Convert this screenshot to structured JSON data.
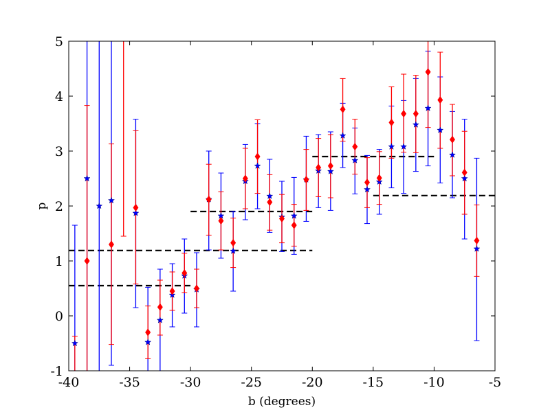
{
  "chart_data": {
    "type": "scatter",
    "title": "",
    "xlabel": "b (degrees)",
    "ylabel": "p",
    "xlim": [
      -40,
      -5
    ],
    "ylim": [
      -1,
      5
    ],
    "xticks": [
      -40,
      -35,
      -30,
      -25,
      -20,
      -15,
      -10,
      -5
    ],
    "yticks": [
      -1,
      0,
      1,
      2,
      3,
      4,
      5
    ],
    "xtick_labels": [
      "-40",
      "-35",
      "-30",
      "-25",
      "-20",
      "-15",
      "-10",
      "-5"
    ],
    "ytick_labels": [
      "-1",
      "0",
      "1",
      "2",
      "3",
      "4",
      "5"
    ],
    "grid": false,
    "legend": "none",
    "series": [
      {
        "marker": "star",
        "color": "#0000ff",
        "points": [
          {
            "x": -39.5,
            "y": -0.5,
            "lo": -1.0,
            "hi": 1.65
          },
          {
            "x": -38.5,
            "y": 2.5,
            "lo": -1.0,
            "hi": 5.0
          },
          {
            "x": -37.5,
            "y": 2.0,
            "lo": -1.0,
            "hi": 5.0
          },
          {
            "x": -36.5,
            "y": 2.1,
            "lo": -0.9,
            "hi": 5.0
          },
          {
            "x": -34.5,
            "y": 1.87,
            "lo": 0.15,
            "hi": 3.58
          },
          {
            "x": -33.5,
            "y": -0.48,
            "lo": -1.0,
            "hi": 0.52
          },
          {
            "x": -32.5,
            "y": -0.08,
            "lo": -1.0,
            "hi": 0.85
          },
          {
            "x": -31.5,
            "y": 0.38,
            "lo": -0.2,
            "hi": 0.95
          },
          {
            "x": -30.5,
            "y": 0.73,
            "lo": 0.05,
            "hi": 1.4
          },
          {
            "x": -29.5,
            "y": 0.48,
            "lo": -0.2,
            "hi": 1.15
          },
          {
            "x": -28.5,
            "y": 2.12,
            "lo": 1.2,
            "hi": 3.0
          },
          {
            "x": -27.5,
            "y": 1.82,
            "lo": 1.05,
            "hi": 2.6
          },
          {
            "x": -26.5,
            "y": 1.18,
            "lo": 0.45,
            "hi": 1.9
          },
          {
            "x": -25.5,
            "y": 2.45,
            "lo": 1.75,
            "hi": 3.12
          },
          {
            "x": -24.5,
            "y": 2.73,
            "lo": 1.95,
            "hi": 3.5
          },
          {
            "x": -23.5,
            "y": 2.18,
            "lo": 1.52,
            "hi": 2.85
          },
          {
            "x": -22.5,
            "y": 1.8,
            "lo": 1.17,
            "hi": 2.45
          },
          {
            "x": -21.5,
            "y": 1.82,
            "lo": 1.12,
            "hi": 2.52
          },
          {
            "x": -20.5,
            "y": 2.48,
            "lo": 1.72,
            "hi": 3.27
          },
          {
            "x": -19.5,
            "y": 2.64,
            "lo": 1.97,
            "hi": 3.3
          },
          {
            "x": -18.5,
            "y": 2.63,
            "lo": 1.92,
            "hi": 3.35
          },
          {
            "x": -17.5,
            "y": 3.28,
            "lo": 2.7,
            "hi": 3.87
          },
          {
            "x": -16.5,
            "y": 2.83,
            "lo": 2.22,
            "hi": 3.42
          },
          {
            "x": -15.5,
            "y": 2.3,
            "lo": 1.68,
            "hi": 2.92
          },
          {
            "x": -14.5,
            "y": 2.44,
            "lo": 1.85,
            "hi": 3.03
          },
          {
            "x": -13.5,
            "y": 3.08,
            "lo": 2.33,
            "hi": 3.82
          },
          {
            "x": -12.5,
            "y": 3.08,
            "lo": 2.23,
            "hi": 3.92
          },
          {
            "x": -11.5,
            "y": 3.48,
            "lo": 2.63,
            "hi": 4.32
          },
          {
            "x": -10.5,
            "y": 3.78,
            "lo": 2.73,
            "hi": 4.82
          },
          {
            "x": -9.5,
            "y": 3.38,
            "lo": 2.42,
            "hi": 4.35
          },
          {
            "x": -8.5,
            "y": 2.93,
            "lo": 2.15,
            "hi": 3.72
          },
          {
            "x": -7.5,
            "y": 2.5,
            "lo": 1.4,
            "hi": 3.58
          },
          {
            "x": -6.5,
            "y": 1.22,
            "lo": -0.45,
            "hi": 2.87
          }
        ]
      },
      {
        "marker": "diamond",
        "color": "#ff0000",
        "points": [
          {
            "x": -39.5,
            "y": -1.2,
            "lo": -1.0,
            "hi": -0.37
          },
          {
            "x": -38.5,
            "y": 1.0,
            "lo": -1.0,
            "hi": 3.83
          },
          {
            "x": -36.5,
            "y": 1.3,
            "lo": -0.52,
            "hi": 3.13
          },
          {
            "x": -35.5,
            "y": 5.3,
            "lo": 1.45,
            "hi": 5.0
          },
          {
            "x": -34.5,
            "y": 1.97,
            "lo": 0.58,
            "hi": 3.37
          },
          {
            "x": -33.5,
            "y": -0.3,
            "lo": -0.78,
            "hi": 0.18
          },
          {
            "x": -32.5,
            "y": 0.16,
            "lo": -0.35,
            "hi": 0.65
          },
          {
            "x": -31.5,
            "y": 0.45,
            "lo": 0.1,
            "hi": 0.8
          },
          {
            "x": -30.5,
            "y": 0.78,
            "lo": 0.42,
            "hi": 1.14
          },
          {
            "x": -29.5,
            "y": 0.5,
            "lo": 0.15,
            "hi": 0.85
          },
          {
            "x": -28.5,
            "y": 2.12,
            "lo": 1.47,
            "hi": 2.76
          },
          {
            "x": -27.5,
            "y": 1.73,
            "lo": 1.2,
            "hi": 2.26
          },
          {
            "x": -26.5,
            "y": 1.33,
            "lo": 0.88,
            "hi": 1.78
          },
          {
            "x": -25.5,
            "y": 2.5,
            "lo": 1.95,
            "hi": 3.05
          },
          {
            "x": -24.5,
            "y": 2.9,
            "lo": 2.23,
            "hi": 3.57
          },
          {
            "x": -23.5,
            "y": 2.07,
            "lo": 1.56,
            "hi": 2.57
          },
          {
            "x": -22.5,
            "y": 1.77,
            "lo": 1.33,
            "hi": 2.21
          },
          {
            "x": -21.5,
            "y": 1.65,
            "lo": 1.27,
            "hi": 2.03
          },
          {
            "x": -20.5,
            "y": 2.48,
            "lo": 1.92,
            "hi": 3.03
          },
          {
            "x": -19.5,
            "y": 2.7,
            "lo": 2.17,
            "hi": 3.23
          },
          {
            "x": -18.5,
            "y": 2.73,
            "lo": 2.15,
            "hi": 3.3
          },
          {
            "x": -17.5,
            "y": 3.76,
            "lo": 3.18,
            "hi": 4.32
          },
          {
            "x": -16.5,
            "y": 3.08,
            "lo": 2.58,
            "hi": 3.58
          },
          {
            "x": -15.5,
            "y": 2.43,
            "lo": 1.97,
            "hi": 2.88
          },
          {
            "x": -14.5,
            "y": 2.51,
            "lo": 2.03,
            "hi": 2.99
          },
          {
            "x": -13.5,
            "y": 3.52,
            "lo": 2.87,
            "hi": 4.17
          },
          {
            "x": -12.5,
            "y": 3.68,
            "lo": 2.98,
            "hi": 4.4
          },
          {
            "x": -11.5,
            "y": 3.68,
            "lo": 2.97,
            "hi": 4.38
          },
          {
            "x": -10.5,
            "y": 4.44,
            "lo": 3.43,
            "hi": 5.0
          },
          {
            "x": -9.5,
            "y": 3.93,
            "lo": 3.05,
            "hi": 4.8
          },
          {
            "x": -8.5,
            "y": 3.21,
            "lo": 2.55,
            "hi": 3.85
          },
          {
            "x": -7.5,
            "y": 2.61,
            "lo": 1.85,
            "hi": 3.36
          },
          {
            "x": -6.5,
            "y": 1.37,
            "lo": 0.72,
            "hi": 2.02
          }
        ]
      }
    ],
    "reference_lines": [
      {
        "x": [
          -40,
          -30
        ],
        "y": 0.55
      },
      {
        "x": [
          -40,
          -20
        ],
        "y": 1.19
      },
      {
        "x": [
          -30,
          -20
        ],
        "y": 1.9
      },
      {
        "x": [
          -20,
          -10
        ],
        "y": 2.9
      },
      {
        "x": [
          -15,
          -5
        ],
        "y": 2.19
      }
    ]
  }
}
